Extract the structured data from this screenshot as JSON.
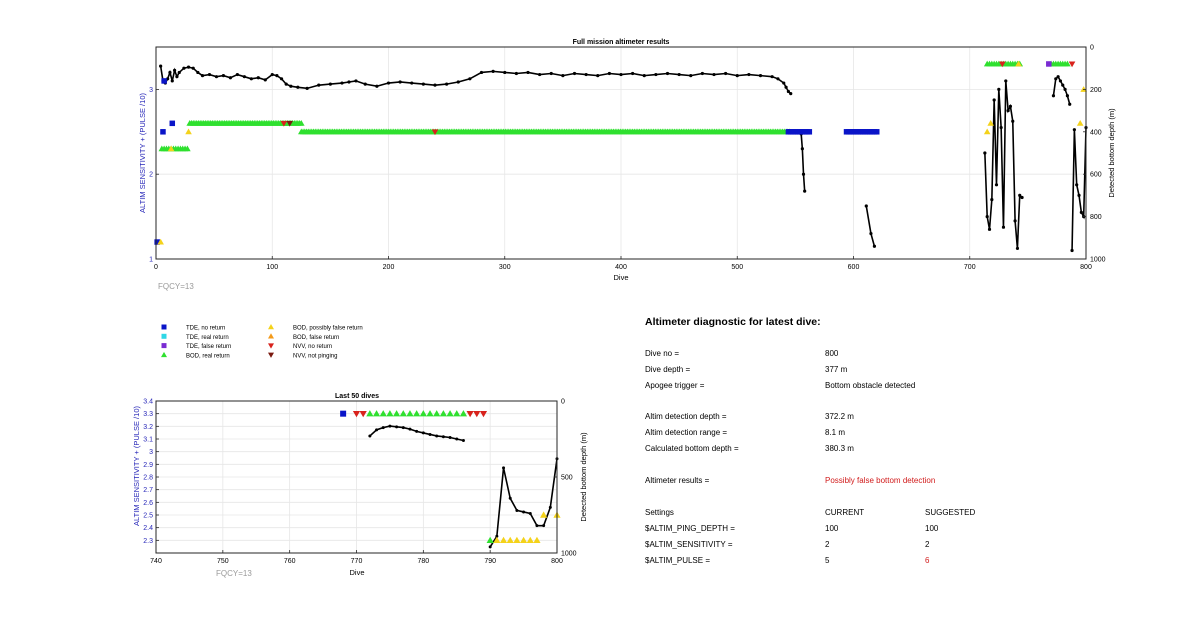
{
  "colors": {
    "tde_no_return": "#0a14c8",
    "tde_real_return": "#2fd7e6",
    "tde_false_return": "#7a2bd2",
    "bod_real_return": "#2fe02f",
    "bod_possibly_false": "#f4d21a",
    "bod_false_return": "#f39a1a",
    "nvv_no_return": "#d8221c",
    "nvv_not_pinging": "#7a1a10",
    "depth_line": "#000000",
    "left_axis_text": "#2626b8",
    "fqcy_text": "#9a9a9a",
    "warning_text": "#d11a1a"
  },
  "legend": [
    {
      "label": "TDE, no return",
      "marker": "square",
      "color_key": "tde_no_return"
    },
    {
      "label": "TDE, real return",
      "marker": "square",
      "color_key": "tde_real_return"
    },
    {
      "label": "TDE, false return",
      "marker": "square",
      "color_key": "tde_false_return"
    },
    {
      "label": "BOD, real return",
      "marker": "triangle-up",
      "color_key": "bod_real_return"
    },
    {
      "label": "BOD, possibly false return",
      "marker": "triangle-up",
      "color_key": "bod_possibly_false"
    },
    {
      "label": "BOD, false return",
      "marker": "triangle-up",
      "color_key": "bod_false_return"
    },
    {
      "label": "NVV, no return",
      "marker": "triangle-down",
      "color_key": "nvv_no_return"
    },
    {
      "label": "NVV, not pinging",
      "marker": "triangle-down",
      "color_key": "nvv_not_pinging"
    }
  ],
  "chart_data": [
    {
      "type": "scatter",
      "title": "Full mission altimeter results",
      "xlabel": "Dive",
      "ylabel_left": "ALTIM SENSITIVITY + (PULSE /10)",
      "ylabel_right": "Detected bottom depth (m)",
      "xlim": [
        0,
        800
      ],
      "ylim_left": [
        1,
        3.5
      ],
      "ylim_right": [
        0,
        1000
      ],
      "right_axis_reversed": true,
      "x_ticks": [
        0,
        100,
        200,
        300,
        400,
        500,
        600,
        700,
        800
      ],
      "y_ticks_left": [
        1,
        2,
        3
      ],
      "y_ticks_right": [
        0,
        200,
        400,
        600,
        800,
        1000
      ],
      "grid": true,
      "annotation": "FQCY=13",
      "marker_runs": [
        {
          "color_key": "bod_real_return",
          "marker": "triangle-up",
          "y": 2.6,
          "x_from": 29,
          "x_to": 125,
          "step": 1.5
        },
        {
          "color_key": "bod_real_return",
          "marker": "triangle-up",
          "y": 2.5,
          "x_from": 125,
          "x_to": 545,
          "step": 1.5
        },
        {
          "color_key": "bod_real_return",
          "marker": "triangle-up",
          "y": 3.3,
          "x_from": 715,
          "x_to": 743,
          "step": 2
        },
        {
          "color_key": "bod_real_return",
          "marker": "triangle-up",
          "y": 3.3,
          "x_from": 770,
          "x_to": 785,
          "step": 2
        },
        {
          "color_key": "bod_real_return",
          "marker": "triangle-up",
          "y": 2.3,
          "x_from": 5,
          "x_to": 27,
          "step": 2
        },
        {
          "color_key": "tde_no_return",
          "marker": "square",
          "y": 2.5,
          "x_from": 544,
          "x_to": 562,
          "step": 2
        },
        {
          "color_key": "tde_no_return",
          "marker": "square",
          "y": 2.5,
          "x_from": 594,
          "x_to": 620,
          "step": 2
        }
      ],
      "markers": [
        {
          "x": 1,
          "y": 1.2,
          "color_key": "tde_no_return",
          "marker": "square"
        },
        {
          "x": 4,
          "y": 1.2,
          "color_key": "bod_possibly_false",
          "marker": "triangle-up"
        },
        {
          "x": 6,
          "y": 2.5,
          "color_key": "tde_no_return",
          "marker": "square"
        },
        {
          "x": 14,
          "y": 2.6,
          "color_key": "tde_no_return",
          "marker": "square"
        },
        {
          "x": 7,
          "y": 3.1,
          "color_key": "tde_no_return",
          "marker": "square"
        },
        {
          "x": 28,
          "y": 2.5,
          "color_key": "bod_possibly_false",
          "marker": "triangle-up"
        },
        {
          "x": 13,
          "y": 2.3,
          "color_key": "bod_possibly_false",
          "marker": "triangle-up"
        },
        {
          "x": 110,
          "y": 2.6,
          "color_key": "nvv_no_return",
          "marker": "triangle-down"
        },
        {
          "x": 115,
          "y": 2.6,
          "color_key": "nvv_not_pinging",
          "marker": "triangle-down"
        },
        {
          "x": 240,
          "y": 2.5,
          "color_key": "nvv_no_return",
          "marker": "triangle-down"
        },
        {
          "x": 718,
          "y": 2.6,
          "color_key": "bod_possibly_false",
          "marker": "triangle-up"
        },
        {
          "x": 715,
          "y": 2.5,
          "color_key": "bod_possibly_false",
          "marker": "triangle-up"
        },
        {
          "x": 742,
          "y": 3.3,
          "color_key": "bod_possibly_false",
          "marker": "triangle-up"
        },
        {
          "x": 728,
          "y": 3.3,
          "color_key": "nvv_no_return",
          "marker": "triangle-down"
        },
        {
          "x": 768,
          "y": 3.3,
          "color_key": "tde_false_return",
          "marker": "square"
        },
        {
          "x": 788,
          "y": 3.3,
          "color_key": "nvv_no_return",
          "marker": "triangle-down"
        },
        {
          "x": 795,
          "y": 2.6,
          "color_key": "bod_possibly_false",
          "marker": "triangle-up"
        },
        {
          "x": 798,
          "y": 3.0,
          "color_key": "bod_possibly_false",
          "marker": "triangle-up"
        }
      ],
      "depth_series": [
        {
          "x": [
            4,
            6,
            8,
            10,
            12,
            14,
            16,
            18,
            20,
            24,
            28,
            32,
            36,
            40,
            46,
            52,
            58,
            64,
            70,
            76,
            82,
            88,
            94,
            100,
            104,
            108,
            112,
            116,
            122,
            130,
            140,
            150,
            160,
            166,
            172,
            180,
            190,
            200,
            210,
            220,
            230,
            240,
            250,
            260,
            270,
            280,
            290,
            300,
            310,
            320,
            330,
            340,
            350,
            360,
            370,
            380,
            390,
            400,
            410,
            420,
            430,
            440,
            450,
            460,
            470,
            480,
            490,
            500,
            510,
            520,
            530,
            535,
            540,
            542,
            544,
            546
          ],
          "y": [
            90,
            160,
            170,
            150,
            120,
            160,
            110,
            140,
            120,
            100,
            95,
            100,
            120,
            135,
            130,
            140,
            135,
            145,
            130,
            140,
            150,
            145,
            155,
            130,
            135,
            150,
            175,
            185,
            190,
            195,
            180,
            175,
            170,
            165,
            160,
            175,
            185,
            170,
            165,
            170,
            175,
            180,
            175,
            165,
            150,
            120,
            115,
            120,
            125,
            120,
            130,
            125,
            135,
            125,
            130,
            135,
            125,
            130,
            125,
            135,
            130,
            125,
            130,
            135,
            125,
            130,
            125,
            135,
            130,
            135,
            140,
            150,
            170,
            190,
            210,
            220
          ]
        },
        {
          "x": [
            555,
            556,
            557,
            558
          ],
          "y": [
            410,
            480,
            600,
            680
          ]
        },
        {
          "x": [
            611,
            615,
            618
          ],
          "y": [
            750,
            880,
            940
          ]
        },
        {
          "x": [
            713,
            715,
            717,
            719,
            721,
            723,
            725,
            727,
            729,
            731,
            733,
            735,
            737,
            739,
            741,
            743,
            745
          ],
          "y": [
            500,
            800,
            860,
            720,
            250,
            650,
            200,
            380,
            850,
            160,
            300,
            280,
            350,
            820,
            950,
            700,
            710
          ]
        },
        {
          "x": [
            772,
            774,
            776,
            778,
            780,
            782,
            784,
            786
          ],
          "y": [
            230,
            150,
            140,
            160,
            180,
            200,
            230,
            270
          ]
        },
        {
          "x": [
            788,
            790,
            792,
            794,
            796,
            798,
            800
          ],
          "y": [
            960,
            390,
            650,
            700,
            780,
            800,
            380
          ]
        }
      ]
    },
    {
      "type": "scatter",
      "title": "Last 50 dives",
      "xlabel": "Dive",
      "ylabel_left": "ALTIM SENSITIVITY + (PULSE /10)",
      "ylabel_right": "Detected bottom depth (m)",
      "xlim": [
        740,
        800
      ],
      "ylim_left": [
        2.2,
        3.4
      ],
      "ylim_right": [
        0,
        1000
      ],
      "right_axis_reversed": true,
      "x_ticks": [
        740,
        750,
        760,
        770,
        780,
        790,
        800
      ],
      "y_ticks_left": [
        2.3,
        2.4,
        2.5,
        2.6,
        2.7,
        2.8,
        2.9,
        3,
        3.1,
        3.2,
        3.3,
        3.4
      ],
      "y_ticks_right": [
        0,
        500,
        1000
      ],
      "grid": true,
      "annotation": "FQCY=13",
      "markers": [
        {
          "x": 768,
          "y": 3.3,
          "color_key": "tde_no_return",
          "marker": "square"
        },
        {
          "x": 770,
          "y": 3.3,
          "color_key": "nvv_no_return",
          "marker": "triangle-down"
        },
        {
          "x": 771,
          "y": 3.3,
          "color_key": "nvv_no_return",
          "marker": "triangle-down"
        },
        {
          "x": 772,
          "y": 3.3,
          "color_key": "bod_real_return",
          "marker": "triangle-up"
        },
        {
          "x": 773,
          "y": 3.3,
          "color_key": "bod_real_return",
          "marker": "triangle-up"
        },
        {
          "x": 774,
          "y": 3.3,
          "color_key": "bod_real_return",
          "marker": "triangle-up"
        },
        {
          "x": 775,
          "y": 3.3,
          "color_key": "bod_real_return",
          "marker": "triangle-up"
        },
        {
          "x": 776,
          "y": 3.3,
          "color_key": "bod_real_return",
          "marker": "triangle-up"
        },
        {
          "x": 777,
          "y": 3.3,
          "color_key": "bod_real_return",
          "marker": "triangle-up"
        },
        {
          "x": 778,
          "y": 3.3,
          "color_key": "bod_real_return",
          "marker": "triangle-up"
        },
        {
          "x": 779,
          "y": 3.3,
          "color_key": "bod_real_return",
          "marker": "triangle-up"
        },
        {
          "x": 780,
          "y": 3.3,
          "color_key": "bod_real_return",
          "marker": "triangle-up"
        },
        {
          "x": 781,
          "y": 3.3,
          "color_key": "bod_real_return",
          "marker": "triangle-up"
        },
        {
          "x": 782,
          "y": 3.3,
          "color_key": "bod_real_return",
          "marker": "triangle-up"
        },
        {
          "x": 783,
          "y": 3.3,
          "color_key": "bod_real_return",
          "marker": "triangle-up"
        },
        {
          "x": 784,
          "y": 3.3,
          "color_key": "bod_real_return",
          "marker": "triangle-up"
        },
        {
          "x": 785,
          "y": 3.3,
          "color_key": "bod_real_return",
          "marker": "triangle-up"
        },
        {
          "x": 786,
          "y": 3.3,
          "color_key": "bod_real_return",
          "marker": "triangle-up"
        },
        {
          "x": 787,
          "y": 3.3,
          "color_key": "nvv_no_return",
          "marker": "triangle-down"
        },
        {
          "x": 788,
          "y": 3.3,
          "color_key": "nvv_no_return",
          "marker": "triangle-down"
        },
        {
          "x": 789,
          "y": 3.3,
          "color_key": "nvv_no_return",
          "marker": "triangle-down"
        },
        {
          "x": 790,
          "y": 2.3,
          "color_key": "bod_real_return",
          "marker": "triangle-up"
        },
        {
          "x": 791,
          "y": 2.3,
          "color_key": "bod_possibly_false",
          "marker": "triangle-up"
        },
        {
          "x": 792,
          "y": 2.3,
          "color_key": "bod_possibly_false",
          "marker": "triangle-up"
        },
        {
          "x": 793,
          "y": 2.3,
          "color_key": "bod_possibly_false",
          "marker": "triangle-up"
        },
        {
          "x": 794,
          "y": 2.3,
          "color_key": "bod_possibly_false",
          "marker": "triangle-up"
        },
        {
          "x": 795,
          "y": 2.3,
          "color_key": "bod_possibly_false",
          "marker": "triangle-up"
        },
        {
          "x": 796,
          "y": 2.3,
          "color_key": "bod_possibly_false",
          "marker": "triangle-up"
        },
        {
          "x": 797,
          "y": 2.3,
          "color_key": "bod_possibly_false",
          "marker": "triangle-up"
        },
        {
          "x": 798,
          "y": 2.5,
          "color_key": "bod_possibly_false",
          "marker": "triangle-up"
        },
        {
          "x": 800,
          "y": 2.5,
          "color_key": "bod_possibly_false",
          "marker": "triangle-up"
        }
      ],
      "depth_series": [
        {
          "x": [
            772,
            773,
            774,
            775,
            776,
            777,
            778,
            779,
            780,
            781,
            782,
            783,
            784,
            785,
            786
          ],
          "y": [
            230,
            190,
            175,
            165,
            170,
            175,
            185,
            200,
            210,
            220,
            230,
            235,
            240,
            250,
            260
          ]
        },
        {
          "x": [
            790,
            791,
            792,
            793,
            794,
            795,
            796,
            797,
            798,
            799,
            800
          ],
          "y": [
            960,
            890,
            440,
            640,
            720,
            730,
            740,
            820,
            820,
            700,
            380
          ]
        }
      ]
    }
  ],
  "diagnostic": {
    "title": "Altimeter diagnostic for latest dive:",
    "rows": [
      {
        "label": "Dive no =",
        "value": "800"
      },
      {
        "label": "Dive depth =",
        "value": "377 m"
      },
      {
        "label": "Apogee trigger =",
        "value": "Bottom obstacle detected"
      }
    ],
    "rows2": [
      {
        "label": "Altim detection depth =",
        "value": "372.2 m"
      },
      {
        "label": "Altim detection range =",
        "value": "8.1 m"
      },
      {
        "label": "Calculated bottom depth =",
        "value": "380.3 m"
      }
    ],
    "results_label": "Altimeter results =",
    "results_value": "Possibly false bottom detection",
    "settings_header": {
      "label": "Settings",
      "current": "CURRENT",
      "suggested": "SUGGESTED"
    },
    "settings": [
      {
        "name": "$ALTIM_PING_DEPTH =",
        "current": "100",
        "suggested": "100",
        "changed": false
      },
      {
        "name": "$ALTIM_SENSITIVITY =",
        "current": "2",
        "suggested": "2",
        "changed": false
      },
      {
        "name": "$ALTIM_PULSE =",
        "current": "5",
        "suggested": "6",
        "changed": true
      }
    ]
  }
}
